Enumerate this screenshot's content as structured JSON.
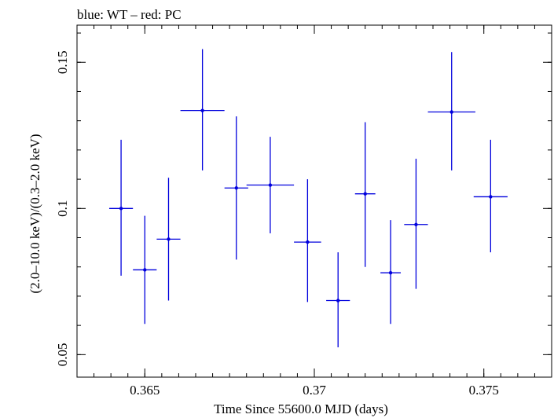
{
  "chart_data": {
    "type": "scatter",
    "title": "blue: WT – red: PC",
    "xlabel": "Time Since 55600.0 MJD (days)",
    "ylabel": "(2.0–10.0 keV)/(0.3–2.0 keV)",
    "xlim": [
      0.363,
      0.377
    ],
    "ylim": [
      0.0423,
      0.1627
    ],
    "x_ticks": [
      {
        "value": 0.365,
        "label": "0.365"
      },
      {
        "value": 0.37,
        "label": "0.37"
      },
      {
        "value": 0.375,
        "label": "0.375"
      }
    ],
    "x_minor_step": 0.0005,
    "y_ticks": [
      {
        "value": 0.05,
        "label": "0.05"
      },
      {
        "value": 0.1,
        "label": "0.1"
      },
      {
        "value": 0.15,
        "label": "0.15"
      }
    ],
    "y_minor_step": 0.01,
    "grid": false,
    "series": [
      {
        "color": "#0000dd",
        "points": [
          {
            "x": 0.3643,
            "y": 0.1,
            "xerr": 0.00035,
            "ylo": 0.077,
            "yhi": 0.1235
          },
          {
            "x": 0.365,
            "y": 0.079,
            "xerr": 0.00035,
            "ylo": 0.0605,
            "yhi": 0.0975
          },
          {
            "x": 0.3657,
            "y": 0.0895,
            "xerr": 0.00035,
            "ylo": 0.0685,
            "yhi": 0.1105
          },
          {
            "x": 0.3667,
            "y": 0.1335,
            "xerr": 0.00065,
            "ylo": 0.113,
            "yhi": 0.1545
          },
          {
            "x": 0.3677,
            "y": 0.107,
            "xerr": 0.00035,
            "ylo": 0.0825,
            "yhi": 0.1315
          },
          {
            "x": 0.3687,
            "y": 0.108,
            "xerr": 0.0007,
            "ylo": 0.0915,
            "yhi": 0.1245
          },
          {
            "x": 0.3698,
            "y": 0.0885,
            "xerr": 0.0004,
            "ylo": 0.068,
            "yhi": 0.11
          },
          {
            "x": 0.3707,
            "y": 0.0685,
            "xerr": 0.00035,
            "ylo": 0.0525,
            "yhi": 0.085
          },
          {
            "x": 0.3715,
            "y": 0.105,
            "xerr": 0.0003,
            "ylo": 0.08,
            "yhi": 0.1295
          },
          {
            "x": 0.37225,
            "y": 0.078,
            "xerr": 0.0003,
            "ylo": 0.0605,
            "yhi": 0.096
          },
          {
            "x": 0.373,
            "y": 0.0945,
            "xerr": 0.00035,
            "ylo": 0.0725,
            "yhi": 0.117
          },
          {
            "x": 0.37405,
            "y": 0.133,
            "xerr": 0.0007,
            "ylo": 0.113,
            "yhi": 0.1535
          },
          {
            "x": 0.3752,
            "y": 0.104,
            "xerr": 0.0005,
            "ylo": 0.085,
            "yhi": 0.1235
          }
        ]
      }
    ]
  }
}
